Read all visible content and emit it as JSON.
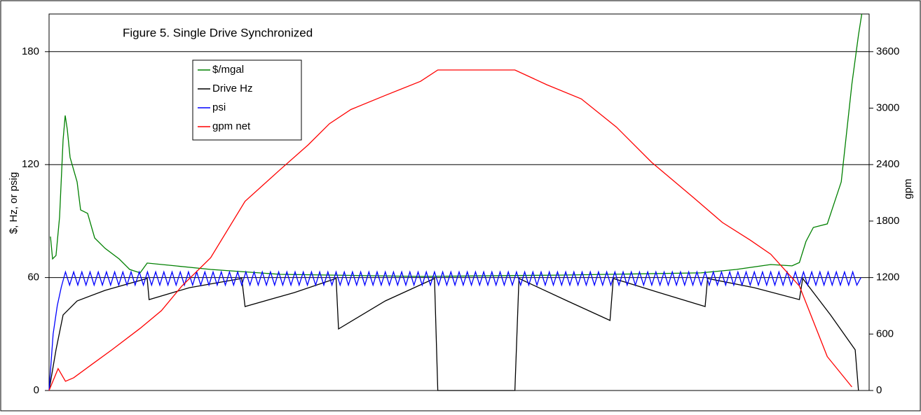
{
  "chart_data": {
    "type": "line",
    "title": "Figure 5. Single Drive Synchronized",
    "ylabel": "$, Hz, or psig",
    "y2label": "gpm",
    "xlim": [
      0,
      100
    ],
    "ylim": [
      0,
      200
    ],
    "yticks": [
      0,
      60,
      120,
      180
    ],
    "y2lim": [
      0,
      4000
    ],
    "y2ticks": [
      0,
      600,
      1200,
      1800,
      2400,
      3000,
      3600
    ],
    "grid": true,
    "series": [
      {
        "name": "$/mgal",
        "color": "#008000",
        "x": [
          0.17,
          0.43,
          0.85,
          1.28,
          1.71,
          1.97,
          2.22,
          2.56,
          3.42,
          3.85,
          4.7,
          5.56,
          6.84,
          8.55,
          9.83,
          11.1,
          11.97,
          15.4,
          19.7,
          28.2,
          45.3,
          62.4,
          79.5,
          83.8,
          88.0,
          90.6,
          91.5,
          92.3,
          93.2,
          94.9,
          96.6,
          97.9,
          98.7,
          99.1
        ],
        "values": [
          81.8,
          69.9,
          71.7,
          92.2,
          133.1,
          146.1,
          138.7,
          123.8,
          110.8,
          95.9,
          94.1,
          81.0,
          75.5,
          69.9,
          64.3,
          62.5,
          67.7,
          66.2,
          64.3,
          61.7,
          60.6,
          61.3,
          62.5,
          64.3,
          66.9,
          66.2,
          68.0,
          79.2,
          86.6,
          88.5,
          110.8,
          162.8,
          188.8,
          200
        ]
      },
      {
        "name": "Drive Hz",
        "color": "#000000",
        "x": [
          0,
          0.85,
          1.71,
          3.42,
          6.84,
          11.97,
          12.2,
          17.1,
          23.5,
          23.9,
          29.9,
          35.0,
          35.3,
          41.0,
          47.0,
          47.4,
          56.8,
          57.3,
          63.2,
          68.4,
          68.8,
          74.4,
          80.0,
          80.3,
          86.0,
          91.5,
          91.9,
          95.3,
          98.3,
          98.7
        ],
        "values": [
          0,
          21.6,
          40.1,
          47.6,
          53.2,
          59.5,
          48.3,
          54.6,
          59.5,
          44.6,
          52.0,
          59.5,
          32.7,
          47.6,
          59.5,
          0,
          0,
          59.5,
          47.6,
          37.2,
          59.5,
          52.0,
          44.6,
          59.5,
          54.6,
          48.3,
          59.5,
          40.1,
          21.6,
          0
        ]
      },
      {
        "name": "psi",
        "color": "#0000ff",
        "x": [
          0,
          0.5,
          1,
          1.5,
          2,
          2.5,
          3,
          3.5,
          4,
          4.5,
          5,
          5.5,
          6,
          6.5,
          7,
          7.5,
          8,
          8.5,
          9,
          9.5,
          10,
          10.5,
          11,
          11.5,
          12,
          12.5,
          13,
          13.5,
          14,
          14.5,
          15,
          15.5,
          16,
          16.5,
          17,
          17.5,
          18,
          18.5,
          19,
          19.5,
          20,
          20.5,
          21,
          21.5,
          22,
          22.5,
          23,
          23.5,
          24,
          24.5,
          25,
          25.5,
          26,
          26.5,
          27,
          27.5,
          28,
          28.5,
          29,
          29.5,
          30,
          30.5,
          31,
          31.5,
          32,
          32.5,
          33,
          33.5,
          34,
          34.5,
          35,
          35.5,
          36,
          36.5,
          37,
          37.5,
          38,
          38.5,
          39,
          39.5,
          40,
          40.5,
          41,
          41.5,
          42,
          42.5,
          43,
          43.5,
          44,
          44.5,
          45,
          45.5,
          46,
          46.5,
          47,
          47.5,
          48,
          48.5,
          49,
          49.5,
          50,
          50.5,
          51,
          51.5,
          52,
          52.5,
          53,
          53.5,
          54,
          54.5,
          55,
          55.5,
          56,
          56.5,
          57,
          57.5,
          58,
          58.5,
          59,
          59.5,
          60,
          60.5,
          61,
          61.5,
          62,
          62.5,
          63,
          63.5,
          64,
          64.5,
          65,
          65.5,
          66,
          66.5,
          67,
          67.5,
          68,
          68.5,
          69,
          69.5,
          70,
          70.5,
          71,
          71.5,
          72,
          72.5,
          73,
          73.5,
          74,
          74.5,
          75,
          75.5,
          76,
          76.5,
          77,
          77.5,
          78,
          78.5,
          79,
          79.5,
          80,
          80.5,
          81,
          81.5,
          82,
          82.5,
          83,
          83.5,
          84,
          84.5,
          85,
          85.5,
          86,
          86.5,
          87,
          87.5,
          88,
          88.5,
          89,
          89.5,
          90,
          90.5,
          91,
          91.5,
          92,
          92.5,
          93,
          93.5,
          94,
          94.5,
          95,
          95.5,
          96,
          96.5,
          97,
          97.5,
          98,
          98.5,
          99
        ],
        "values": [
          0,
          30,
          45,
          55,
          63,
          56,
          63,
          56,
          63,
          56,
          63,
          56,
          63,
          56,
          63,
          56,
          63,
          56,
          63,
          56,
          63,
          56,
          63,
          56,
          63,
          56,
          63,
          56,
          63,
          56,
          63,
          56,
          63,
          56,
          63,
          56,
          63,
          56,
          63,
          56,
          63,
          56,
          63,
          56,
          63,
          56,
          63,
          56,
          63,
          56,
          63,
          56,
          63,
          56,
          63,
          56,
          63,
          56,
          63,
          56,
          63,
          56,
          63,
          56,
          63,
          56,
          63,
          56,
          63,
          56,
          63,
          56,
          63,
          56,
          63,
          56,
          63,
          56,
          63,
          56,
          63,
          56,
          63,
          56,
          63,
          56,
          63,
          56,
          63,
          56,
          63,
          56,
          63,
          56,
          63,
          56,
          63,
          56,
          63,
          56,
          63,
          56,
          63,
          56,
          63,
          56,
          63,
          56,
          63,
          56,
          63,
          56,
          63,
          56,
          63,
          56,
          63,
          56,
          63,
          56,
          63,
          56,
          63,
          56,
          63,
          56,
          63,
          56,
          63,
          56,
          63,
          56,
          63,
          56,
          63,
          56,
          63,
          56,
          63,
          56,
          63,
          56,
          63,
          56,
          63,
          56,
          63,
          56,
          63,
          56,
          63,
          56,
          63,
          56,
          63,
          56,
          63,
          56,
          63,
          56,
          63,
          56,
          63,
          56,
          63,
          56,
          63,
          56,
          63,
          56,
          63,
          56,
          63,
          56,
          63,
          56,
          63,
          56,
          63,
          56,
          63,
          56,
          63,
          56,
          63,
          56,
          63,
          56,
          63,
          56,
          63,
          56,
          63,
          56,
          63,
          56,
          63,
          56,
          60
        ]
      },
      {
        "name": "gpm net",
        "color": "#ff0000",
        "axis": "y2",
        "x": [
          0,
          1.1,
          2,
          3,
          5.1,
          7.7,
          11.1,
          13.7,
          16.2,
          19.7,
          23.9,
          28.2,
          31.6,
          34.2,
          36.8,
          41,
          45.3,
          47.4,
          56.8,
          60.7,
          64.9,
          69.2,
          73.5,
          78.6,
          82.1,
          85.5,
          88,
          91.5,
          93.2,
          94.9,
          97.9
        ],
        "values": [
          0,
          233,
          98,
          135,
          270,
          435,
          660,
          848,
          1110,
          1410,
          2010,
          2348,
          2610,
          2835,
          2985,
          3135,
          3285,
          3405,
          3405,
          3248,
          3098,
          2798,
          2423,
          2048,
          1785,
          1598,
          1448,
          1110,
          735,
          360,
          38
        ]
      }
    ]
  }
}
